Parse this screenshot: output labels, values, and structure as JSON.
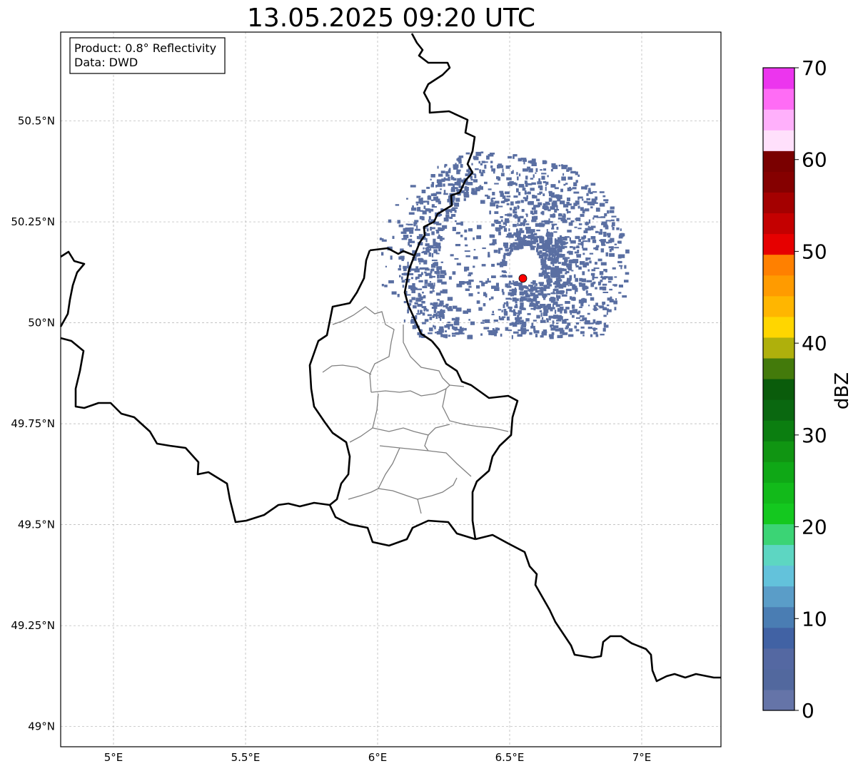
{
  "title": "13.05.2025 09:20 UTC",
  "info_box": {
    "product": "Product: 0.8° Reflectivity",
    "data": "Data: DWD"
  },
  "map": {
    "lon_range": [
      4.8,
      7.3
    ],
    "lat_range": [
      48.95,
      50.72
    ],
    "gridlines": true,
    "x_ticks": [
      {
        "value": 5.0,
        "label": "5°E"
      },
      {
        "value": 5.5,
        "label": "5.5°E"
      },
      {
        "value": 6.0,
        "label": "6°E"
      },
      {
        "value": 6.5,
        "label": "6.5°E"
      },
      {
        "value": 7.0,
        "label": "7°E"
      }
    ],
    "y_ticks": [
      {
        "value": 49.0,
        "label": "49°N"
      },
      {
        "value": 49.25,
        "label": "49.25°N"
      },
      {
        "value": 49.5,
        "label": "49.5°N"
      },
      {
        "value": 49.75,
        "label": "49.75°N"
      },
      {
        "value": 50.0,
        "label": "50°N"
      },
      {
        "value": 50.25,
        "label": "50.25°N"
      },
      {
        "value": 50.5,
        "label": "50.5°N"
      }
    ],
    "radar_site": {
      "lon": 6.55,
      "lat": 50.11,
      "color": "#ff0000"
    },
    "echo_color": "#52689e",
    "border_color": "#000000",
    "district_color": "#808080"
  },
  "colorbar": {
    "label": "dBZ",
    "min": 0,
    "max": 70,
    "step": 2.5,
    "ticks": [
      0,
      10,
      20,
      30,
      40,
      50,
      60,
      70
    ],
    "colors": [
      "#6574a8",
      "#52689e",
      "#5468a2",
      "#4162a4",
      "#4a7db3",
      "#5a9dc8",
      "#63c2db",
      "#5dd6c2",
      "#3bd475",
      "#14c81f",
      "#12ba1a",
      "#0fa816",
      "#109512",
      "#0b7e10",
      "#0a6810",
      "#0a5c0b",
      "#437a0b",
      "#afb00c",
      "#ffd600",
      "#ffb600",
      "#ff9b00",
      "#ff8000",
      "#e60000",
      "#c40000",
      "#a40000",
      "#850000",
      "#7a0000",
      "#ffe0fb",
      "#ffb0fb",
      "#ff6cf5",
      "#ec35ee"
    ]
  }
}
